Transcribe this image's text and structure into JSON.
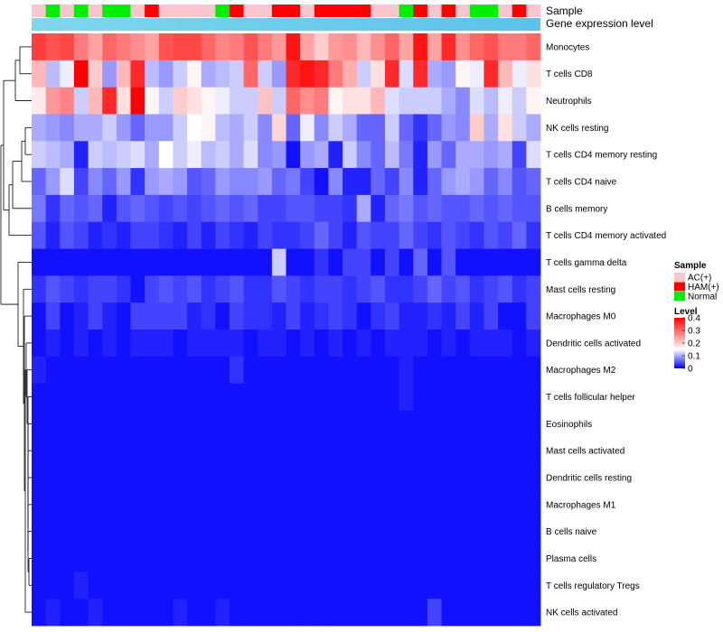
{
  "chart_data": {
    "type": "heatmap",
    "title": "",
    "annotation_rows": {
      "sample_label": "Sample",
      "expression_label": "Gene expression level"
    },
    "sample_groups": [
      {
        "name": "AC(+)",
        "color": "#F9C6D0"
      },
      {
        "name": "HAM(+)",
        "color": "#FF0000"
      },
      {
        "name": "Normal",
        "color": "#00EE00"
      }
    ],
    "column_samples": [
      0,
      2,
      0,
      2,
      0,
      2,
      2,
      0,
      1,
      0,
      0,
      0,
      0,
      2,
      1,
      0,
      0,
      1,
      1,
      0,
      1,
      1,
      1,
      1,
      0,
      0,
      2,
      1,
      0,
      1,
      0,
      2,
      2,
      0,
      1,
      0
    ],
    "expression_bar_colors": [
      "#7FD7EE",
      "#5BC2EA"
    ],
    "legend": {
      "sample_title": "Sample",
      "level_title": "Level",
      "level_ticks": [
        "0.4",
        "0.3",
        "0.2",
        "0.1",
        "0"
      ],
      "scale": {
        "min": 0,
        "max": 0.4,
        "low": "#0000FF",
        "mid": "#FFFFFF",
        "high": "#FF0000",
        "midpoint": 0.15
      }
    },
    "rows": [
      "Monocytes",
      "T cells CD8",
      "Neutrophils",
      "NK cells resting",
      "T cells CD4 memory resting",
      "T cells CD4 naive",
      "B cells memory",
      "T cells CD4 memory activated",
      "T cells gamma delta",
      "Mast cells resting",
      "Macrophages M0",
      "Dendritic cells activated",
      "Macrophages M2",
      "T cells follicular helper",
      "Eosinophils",
      "Mast cells activated",
      "Dendritic cells resting",
      "Macrophages M1",
      "B cells naive",
      "Plasma cells",
      "T cells regulatory  Tregs",
      "NK cells activated"
    ],
    "values": [
      [
        0.34,
        0.32,
        0.33,
        0.28,
        0.24,
        0.3,
        0.28,
        0.26,
        0.24,
        0.32,
        0.33,
        0.33,
        0.3,
        0.27,
        0.28,
        0.32,
        0.28,
        0.25,
        0.38,
        0.24,
        0.2,
        0.25,
        0.26,
        0.22,
        0.26,
        0.3,
        0.24,
        0.38,
        0.24,
        0.36,
        0.26,
        0.3,
        0.32,
        0.28,
        0.28,
        0.3
      ],
      [
        0.22,
        0.11,
        0.14,
        0.4,
        0.2,
        0.09,
        0.22,
        0.36,
        0.11,
        0.09,
        0.12,
        0.16,
        0.1,
        0.11,
        0.12,
        0.3,
        0.12,
        0.09,
        0.36,
        0.38,
        0.36,
        0.28,
        0.23,
        0.12,
        0.18,
        0.36,
        0.13,
        0.36,
        0.1,
        0.09,
        0.16,
        0.14,
        0.36,
        0.22,
        0.14,
        0.18
      ],
      [
        0.17,
        0.25,
        0.27,
        0.12,
        0.22,
        0.36,
        0.18,
        0.4,
        0.16,
        0.12,
        0.2,
        0.18,
        0.16,
        0.14,
        0.12,
        0.12,
        0.21,
        0.12,
        0.3,
        0.26,
        0.28,
        0.16,
        0.18,
        0.18,
        0.22,
        0.13,
        0.12,
        0.12,
        0.12,
        0.1,
        0.08,
        0.13,
        0.11,
        0.14,
        0.12,
        0.16
      ],
      [
        0.1,
        0.09,
        0.08,
        0.1,
        0.1,
        0.12,
        0.09,
        0.06,
        0.09,
        0.09,
        0.12,
        0.15,
        0.16,
        0.11,
        0.1,
        0.12,
        0.08,
        0.19,
        0.06,
        0.14,
        0.08,
        0.12,
        0.1,
        0.06,
        0.06,
        0.12,
        0.06,
        0.03,
        0.06,
        0.09,
        0.08,
        0.2,
        0.1,
        0.18,
        0.12,
        0.1
      ],
      [
        0.12,
        0.11,
        0.1,
        0.02,
        0.12,
        0.11,
        0.12,
        0.13,
        0.1,
        0.15,
        0.12,
        0.14,
        0.11,
        0.12,
        0.1,
        0.13,
        0.08,
        0.09,
        0.01,
        0.09,
        0.1,
        0.02,
        0.12,
        0.08,
        0.06,
        0.11,
        0.07,
        0.02,
        0.09,
        0.06,
        0.1,
        0.1,
        0.09,
        0.1,
        0.04,
        0.13
      ],
      [
        0.06,
        0.09,
        0.13,
        0.04,
        0.08,
        0.06,
        0.09,
        0.03,
        0.09,
        0.1,
        0.09,
        0.05,
        0.06,
        0.09,
        0.08,
        0.08,
        0.09,
        0.06,
        0.07,
        0.04,
        0.01,
        0.08,
        0.02,
        0.02,
        0.06,
        0.04,
        0.08,
        0.02,
        0.06,
        0.09,
        0.1,
        0.09,
        0.06,
        0.08,
        0.05,
        0.06
      ],
      [
        0.07,
        0.03,
        0.06,
        0.05,
        0.06,
        0.02,
        0.05,
        0.06,
        0.05,
        0.04,
        0.05,
        0.04,
        0.05,
        0.06,
        0.05,
        0.06,
        0.04,
        0.04,
        0.05,
        0.05,
        0.04,
        0.04,
        0.03,
        0.1,
        0.02,
        0.06,
        0.07,
        0.05,
        0.06,
        0.05,
        0.05,
        0.06,
        0.05,
        0.06,
        0.05,
        0.05
      ],
      [
        0.05,
        0.02,
        0.05,
        0.04,
        0.02,
        0.03,
        0.02,
        0.04,
        0.04,
        0.03,
        0.02,
        0.04,
        0.02,
        0.04,
        0.03,
        0.02,
        0.04,
        0.03,
        0.03,
        0.04,
        0.06,
        0.04,
        0.02,
        0.05,
        0.04,
        0.04,
        0.06,
        0.04,
        0.03,
        0.05,
        0.04,
        0.03,
        0.05,
        0.04,
        0.06,
        0.03
      ],
      [
        0.01,
        0.01,
        0.01,
        0.01,
        0.01,
        0.01,
        0.01,
        0.01,
        0.01,
        0.01,
        0.01,
        0.01,
        0.01,
        0.01,
        0.01,
        0.01,
        0.01,
        0.12,
        0.01,
        0.01,
        0.03,
        0.01,
        0.04,
        0.04,
        0.01,
        0.04,
        0.01,
        0.06,
        0.01,
        0.05,
        0.01,
        0.01,
        0.01,
        0.01,
        0.01,
        0.01
      ],
      [
        0.03,
        0.05,
        0.04,
        0.03,
        0.04,
        0.04,
        0.03,
        0.01,
        0.04,
        0.05,
        0.04,
        0.05,
        0.03,
        0.04,
        0.05,
        0.03,
        0.03,
        0.05,
        0.04,
        0.03,
        0.04,
        0.04,
        0.03,
        0.04,
        0.05,
        0.03,
        0.03,
        0.04,
        0.06,
        0.04,
        0.05,
        0.03,
        0.04,
        0.05,
        0.03,
        0.04
      ],
      [
        0.01,
        0.04,
        0.01,
        0.02,
        0.04,
        0.02,
        0.01,
        0.04,
        0.04,
        0.04,
        0.04,
        0.02,
        0.03,
        0.01,
        0.04,
        0.03,
        0.03,
        0.02,
        0.04,
        0.02,
        0.03,
        0.04,
        0.03,
        0.01,
        0.03,
        0.04,
        0.02,
        0.02,
        0.03,
        0.02,
        0.04,
        0.02,
        0.04,
        0.01,
        0.01,
        0.04
      ],
      [
        0.01,
        0.02,
        0.01,
        0.02,
        0.01,
        0.02,
        0.01,
        0.02,
        0.02,
        0.02,
        0.01,
        0.02,
        0.02,
        0.02,
        0.02,
        0.01,
        0.02,
        0.02,
        0.01,
        0.02,
        0.01,
        0.02,
        0.01,
        0.02,
        0.01,
        0.02,
        0.02,
        0.02,
        0.01,
        0.02,
        0.01,
        0.02,
        0.02,
        0.02,
        0.01,
        0.02
      ],
      [
        0.02,
        0.01,
        0.01,
        0.01,
        0.01,
        0.01,
        0.01,
        0.01,
        0.01,
        0.01,
        0.01,
        0.01,
        0.01,
        0.01,
        0.03,
        0.01,
        0.01,
        0.01,
        0.01,
        0.01,
        0.01,
        0.01,
        0.01,
        0.01,
        0.01,
        0.01,
        0.02,
        0.01,
        0.01,
        0.01,
        0.01,
        0.01,
        0.01,
        0.01,
        0.01,
        0.01
      ],
      [
        0.01,
        0.01,
        0.01,
        0.01,
        0.01,
        0.01,
        0.01,
        0.01,
        0.01,
        0.01,
        0.01,
        0.01,
        0.01,
        0.01,
        0.01,
        0.01,
        0.01,
        0.01,
        0.01,
        0.01,
        0.01,
        0.01,
        0.01,
        0.01,
        0.01,
        0.01,
        0.02,
        0.01,
        0.01,
        0.01,
        0.01,
        0.01,
        0.01,
        0.01,
        0.01,
        0.01
      ],
      [
        0.01,
        0.01,
        0.01,
        0.01,
        0.01,
        0.01,
        0.01,
        0.01,
        0.01,
        0.01,
        0.01,
        0.01,
        0.01,
        0.01,
        0.01,
        0.01,
        0.01,
        0.01,
        0.01,
        0.01,
        0.01,
        0.01,
        0.01,
        0.01,
        0.01,
        0.01,
        0.01,
        0.01,
        0.01,
        0.01,
        0.01,
        0.01,
        0.01,
        0.01,
        0.01,
        0.01
      ],
      [
        0.01,
        0.01,
        0.01,
        0.01,
        0.01,
        0.01,
        0.01,
        0.01,
        0.01,
        0.01,
        0.01,
        0.01,
        0.01,
        0.01,
        0.01,
        0.01,
        0.01,
        0.01,
        0.01,
        0.01,
        0.01,
        0.01,
        0.01,
        0.01,
        0.01,
        0.01,
        0.01,
        0.01,
        0.01,
        0.01,
        0.01,
        0.01,
        0.01,
        0.01,
        0.01,
        0.01
      ],
      [
        0.01,
        0.01,
        0.01,
        0.01,
        0.01,
        0.01,
        0.01,
        0.01,
        0.01,
        0.01,
        0.01,
        0.01,
        0.01,
        0.01,
        0.01,
        0.01,
        0.01,
        0.01,
        0.01,
        0.01,
        0.01,
        0.01,
        0.01,
        0.01,
        0.01,
        0.01,
        0.01,
        0.01,
        0.01,
        0.01,
        0.01,
        0.01,
        0.01,
        0.01,
        0.01,
        0.01
      ],
      [
        0.01,
        0.01,
        0.01,
        0.01,
        0.01,
        0.01,
        0.01,
        0.01,
        0.01,
        0.01,
        0.01,
        0.01,
        0.01,
        0.01,
        0.01,
        0.01,
        0.01,
        0.01,
        0.01,
        0.01,
        0.01,
        0.01,
        0.01,
        0.01,
        0.01,
        0.01,
        0.01,
        0.01,
        0.01,
        0.01,
        0.01,
        0.01,
        0.01,
        0.01,
        0.01,
        0.01
      ],
      [
        0.01,
        0.01,
        0.01,
        0.01,
        0.01,
        0.01,
        0.01,
        0.01,
        0.01,
        0.01,
        0.01,
        0.01,
        0.01,
        0.01,
        0.01,
        0.01,
        0.01,
        0.01,
        0.01,
        0.01,
        0.01,
        0.01,
        0.01,
        0.01,
        0.01,
        0.01,
        0.01,
        0.01,
        0.01,
        0.01,
        0.01,
        0.01,
        0.01,
        0.01,
        0.01,
        0.01
      ],
      [
        0.01,
        0.01,
        0.01,
        0.01,
        0.01,
        0.01,
        0.01,
        0.01,
        0.01,
        0.01,
        0.01,
        0.01,
        0.01,
        0.01,
        0.01,
        0.01,
        0.01,
        0.01,
        0.01,
        0.01,
        0.01,
        0.01,
        0.01,
        0.01,
        0.01,
        0.01,
        0.01,
        0.01,
        0.01,
        0.01,
        0.01,
        0.01,
        0.01,
        0.01,
        0.01,
        0.01
      ],
      [
        0.01,
        0.01,
        0.01,
        0.02,
        0.01,
        0.01,
        0.01,
        0.01,
        0.01,
        0.01,
        0.01,
        0.01,
        0.01,
        0.01,
        0.01,
        0.01,
        0.01,
        0.01,
        0.01,
        0.01,
        0.01,
        0.01,
        0.01,
        0.01,
        0.01,
        0.01,
        0.01,
        0.01,
        0.01,
        0.01,
        0.01,
        0.01,
        0.01,
        0.01,
        0.01,
        0.01
      ],
      [
        0.01,
        0.02,
        0.01,
        0.01,
        0.02,
        0.01,
        0.01,
        0.01,
        0.01,
        0.01,
        0.02,
        0.01,
        0.01,
        0.02,
        0.01,
        0.01,
        0.01,
        0.01,
        0.01,
        0.01,
        0.01,
        0.01,
        0.01,
        0.01,
        0.01,
        0.01,
        0.01,
        0.01,
        0.04,
        0.01,
        0.01,
        0.01,
        0.01,
        0.01,
        0.01,
        0.01
      ]
    ]
  }
}
